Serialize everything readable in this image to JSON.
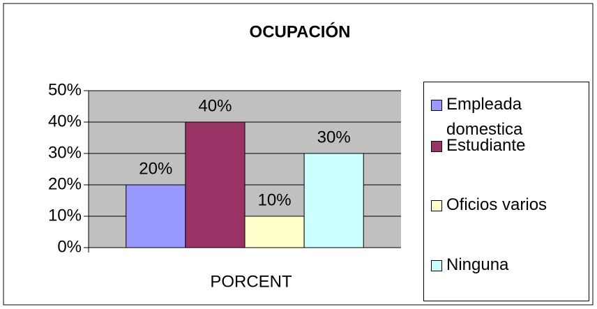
{
  "chart_data": {
    "type": "bar",
    "title": "OCUPACIÓN",
    "x_label": "PORCENT",
    "categories": [
      "PORCENT"
    ],
    "series": [
      {
        "name": "Empleada domestica",
        "color": "#9999ff",
        "values": [
          20
        ],
        "value_labels": [
          "20%"
        ]
      },
      {
        "name": "Estudiante",
        "color": "#993366",
        "values": [
          40
        ],
        "value_labels": [
          "40%"
        ]
      },
      {
        "name": "Oficios varios",
        "color": "#ffffcc",
        "values": [
          10
        ],
        "value_labels": [
          "10%"
        ]
      },
      {
        "name": "Ninguna",
        "color": "#ccffff",
        "values": [
          30
        ],
        "value_labels": [
          "30%"
        ]
      }
    ],
    "ylim": [
      0,
      50
    ],
    "yticks": [
      {
        "value": 0,
        "label": "0%"
      },
      {
        "value": 10,
        "label": "10%"
      },
      {
        "value": 20,
        "label": "20%"
      },
      {
        "value": 30,
        "label": "30%"
      },
      {
        "value": 40,
        "label": "40%"
      },
      {
        "value": 50,
        "label": "50%"
      }
    ],
    "grid": true,
    "plot_background": "#c0c0c0",
    "legend": "right"
  }
}
